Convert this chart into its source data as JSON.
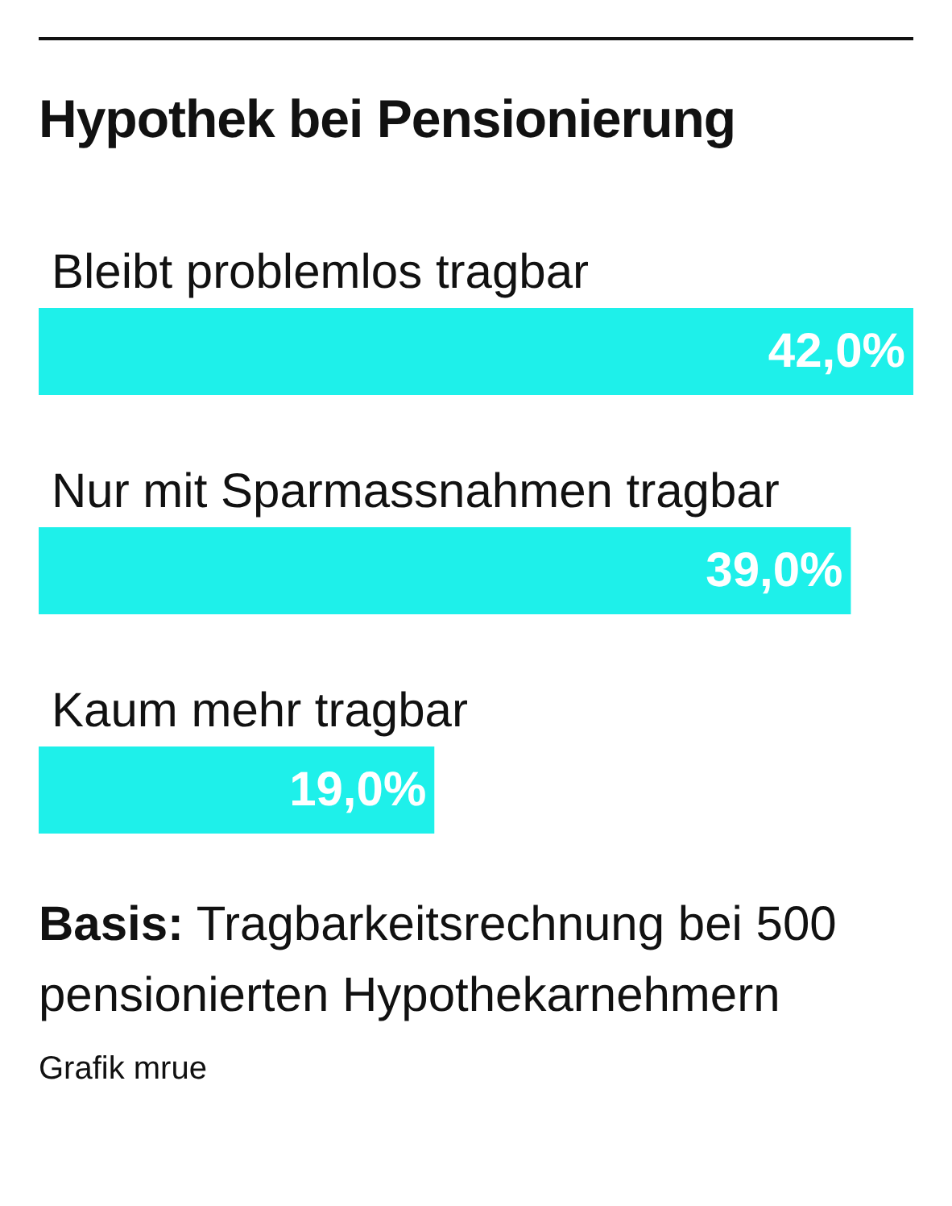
{
  "chart_data": {
    "type": "bar",
    "orientation": "horizontal",
    "title": "Hypothek bei Pensionierung",
    "categories": [
      "Bleibt problemlos tragbar",
      "Nur mit Sparmassnahmen tragbar",
      "Kaum mehr tragbar"
    ],
    "values": [
      42,
      39,
      19
    ],
    "color": "#1ef0ea",
    "value_labels": [
      "42,0%",
      "39,0%",
      "19,0%"
    ],
    "annotations": [
      "Basis: Tragbarkeitsrechnung bei 500 pensionierten Hypothekarnehmern",
      "Grafik mrue"
    ]
  }
}
